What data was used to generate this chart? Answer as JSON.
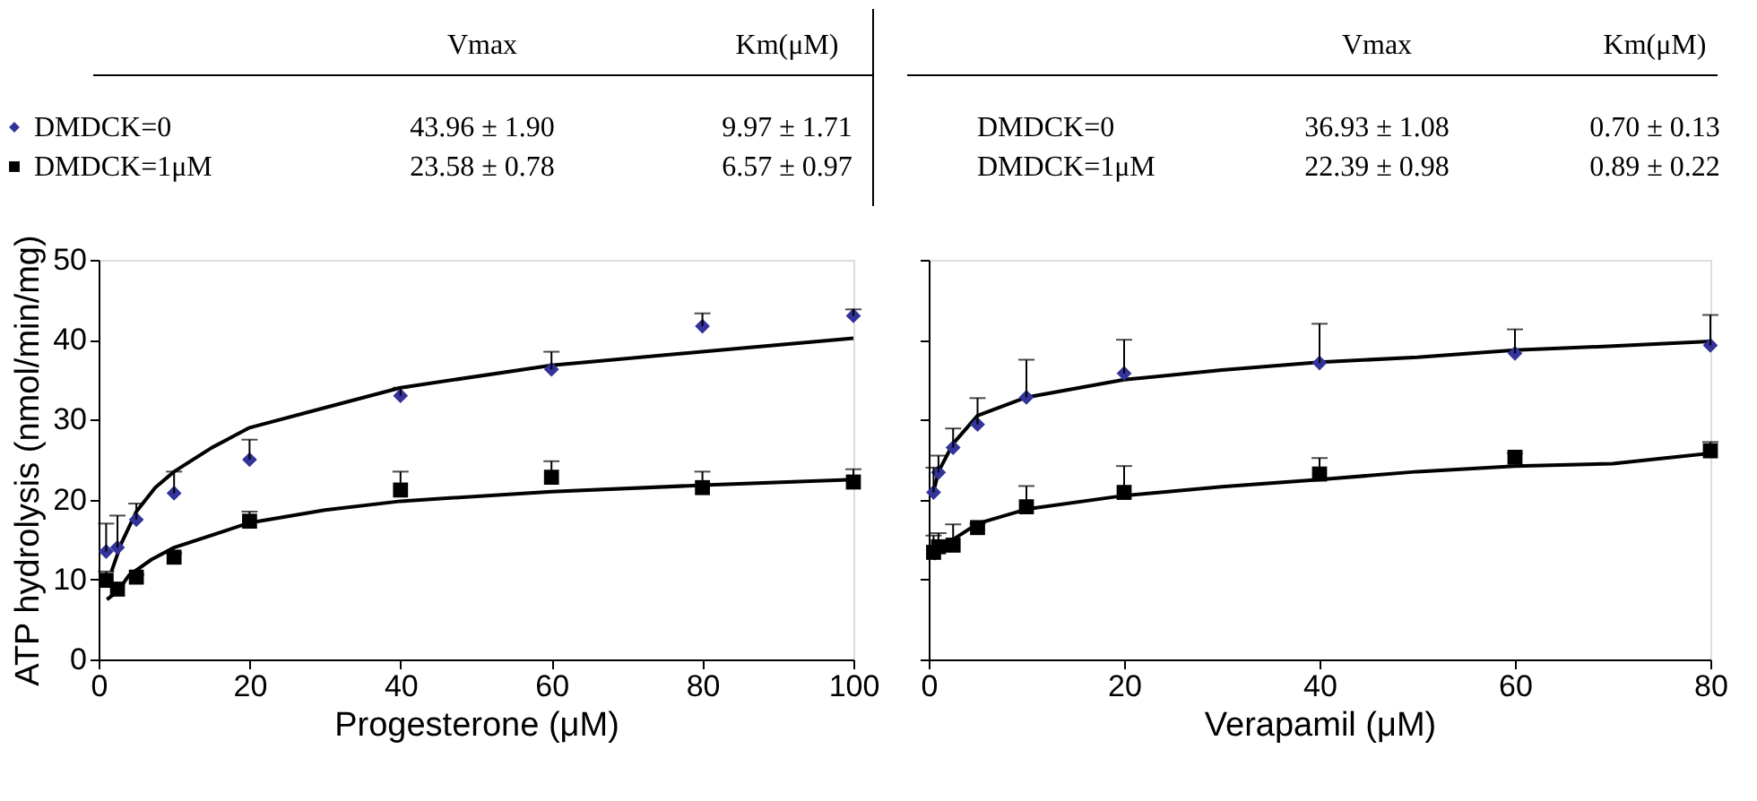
{
  "chart_data": [
    {
      "type": "scatter",
      "xlabel": "Progesterone (μM)",
      "ylabel": "ATP hydrolysis (nmol/min/mg)",
      "xlim": [
        0,
        100
      ],
      "xticks": [
        0,
        20,
        40,
        60,
        80,
        100
      ],
      "ylim": [
        0,
        50
      ],
      "yticks": [
        0,
        10,
        20,
        30,
        40,
        50
      ],
      "grid": false,
      "legend": "top left",
      "annotations": [
        "Vmax",
        "Km(μM)",
        "43.96 ± 1.90",
        "9.97 ± 1.71",
        "23.58 ± 0.78",
        "6.57 ± 0.97"
      ],
      "series": [
        {
          "name": "DMDCK=0",
          "color": "#333399",
          "marker": "diamond",
          "x": [
            1,
            2.5,
            5,
            10,
            20,
            40,
            60,
            80,
            100
          ],
          "values": [
            13.5,
            14,
            17.5,
            20.8,
            25,
            33,
            36.3,
            41.7,
            43
          ],
          "errors": [
            [
              13.5,
              17
            ],
            [
              14,
              18
            ],
            [
              17.5,
              19.5
            ],
            [
              20.8,
              23.5
            ],
            [
              25,
              27.5
            ],
            [
              33,
              34
            ],
            [
              36.3,
              38.5
            ],
            [
              41.7,
              43.3
            ],
            [
              43,
              43.8
            ]
          ]
        },
        {
          "name": "DMDCK=1μM",
          "color": "#000000",
          "marker": "square",
          "x": [
            1,
            2.5,
            5,
            10,
            20,
            40,
            60,
            80,
            100
          ],
          "values": [
            9.9,
            8.8,
            10.3,
            12.8,
            17.3,
            21.2,
            22.8,
            21.5,
            22.2
          ],
          "errors": [
            [
              9.9,
              11
            ],
            [
              8.8,
              9.5
            ],
            [
              10.3,
              10.6
            ],
            [
              12.8,
              13.3
            ],
            [
              17.3,
              18.5
            ],
            [
              21.2,
              23.5
            ],
            [
              22.8,
              24.8
            ],
            [
              21.5,
              23.5
            ],
            [
              22.2,
              23.8
            ]
          ]
        },
        {
          "type": "line",
          "color": "#000000",
          "x": [
            1.7,
            3,
            5,
            7.5,
            10,
            15,
            20,
            30,
            40,
            60,
            80,
            100
          ],
          "values": [
            11,
            14.5,
            18.5,
            21.5,
            23.5,
            26.5,
            29,
            31.5,
            34,
            36.8,
            38.5,
            40.2
          ]
        },
        {
          "type": "line",
          "color": "#000000",
          "x": [
            1.1,
            2.5,
            4,
            7,
            10,
            20,
            30,
            40,
            60,
            80,
            100
          ],
          "values": [
            7.5,
            8.5,
            10.5,
            12.5,
            14,
            17.1,
            18.7,
            19.8,
            21,
            21.8,
            22.5
          ]
        }
      ]
    },
    {
      "type": "scatter",
      "xlabel": "Verapamil (μM)",
      "xlim": [
        0,
        80
      ],
      "xticks": [
        0,
        20,
        40,
        60,
        80
      ],
      "ylim": [
        0,
        50
      ],
      "yticks": [
        0,
        10,
        20,
        30,
        40,
        50
      ],
      "grid": false,
      "legend": false,
      "tick_labels": "x",
      "annotations": [
        "Vmax",
        "Km(μM)",
        "36.93 ± 1.08",
        "0.70 ± 0.13",
        "22.39 ± 0.98",
        "0.89 ± 0.22",
        "DMDCK=0",
        "DMDCK=1μM"
      ],
      "series": [
        {
          "color": "#333399",
          "marker": "diamond",
          "x": [
            0.5,
            1,
            2.5,
            5,
            10,
            20,
            40,
            60,
            80
          ],
          "values": [
            20.9,
            23.4,
            26.5,
            29.4,
            32.8,
            35.8,
            37.1,
            38.3,
            39.3
          ],
          "errors": [
            [
              20.9,
              24
            ],
            [
              23.4,
              25.5
            ],
            [
              26.5,
              28.9
            ],
            [
              29.4,
              32.7
            ],
            [
              32.8,
              37.5
            ],
            [
              35.8,
              40
            ],
            [
              37.1,
              42
            ],
            [
              38.3,
              41.3
            ],
            [
              39.3,
              43.1
            ]
          ]
        },
        {
          "color": "#000000",
          "marker": "square",
          "x": [
            0.5,
            1,
            2.5,
            5,
            10,
            20,
            40,
            60,
            80
          ],
          "values": [
            13.4,
            14.1,
            14.3,
            16.5,
            19.1,
            20.9,
            23.2,
            25.3,
            26.1
          ],
          "errors": [
            [
              13.4,
              15.5
            ],
            [
              14.1,
              15.8
            ],
            [
              14.3,
              16.9
            ],
            [
              16.5,
              17
            ],
            [
              19.1,
              21.7
            ],
            [
              20.9,
              24.2
            ],
            [
              23.2,
              25.2
            ],
            [
              25.3,
              25.8
            ],
            [
              26.1,
              27.2
            ]
          ]
        },
        {
          "type": "line",
          "color": "#000000",
          "x": [
            0.5,
            1,
            2.5,
            5,
            10,
            20,
            30,
            40,
            50,
            60,
            70,
            80
          ],
          "values": [
            21,
            23.5,
            27,
            30.5,
            32.8,
            35,
            36.2,
            37.2,
            37.8,
            38.7,
            39.2,
            39.8
          ]
        },
        {
          "type": "line",
          "color": "#000000",
          "x": [
            0.5,
            1,
            2.5,
            5,
            10,
            20,
            30,
            40,
            50,
            60,
            70,
            80
          ],
          "values": [
            12.5,
            13.5,
            15,
            17,
            18.8,
            20.5,
            21.6,
            22.5,
            23.5,
            24.2,
            24.5,
            25.8
          ]
        }
      ]
    }
  ]
}
